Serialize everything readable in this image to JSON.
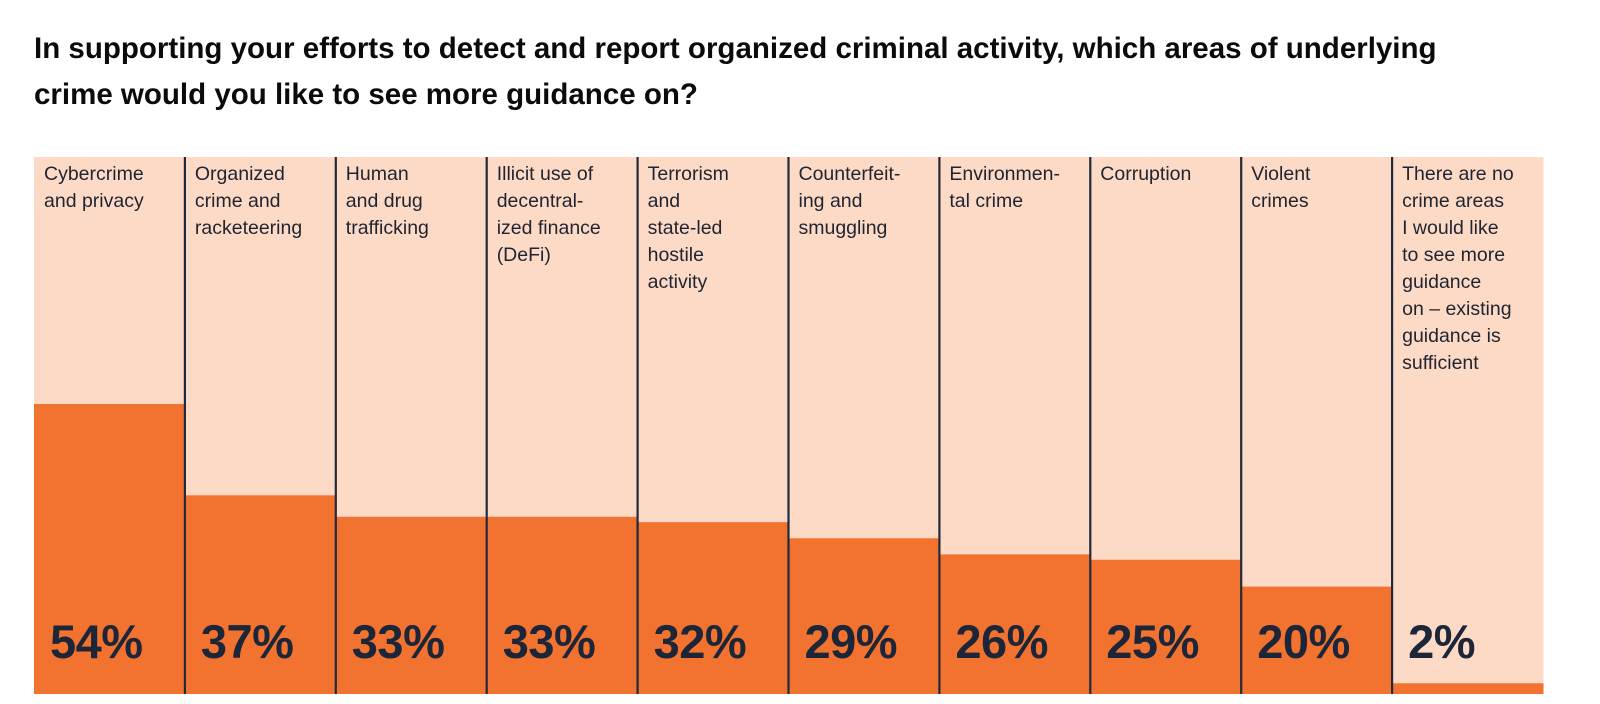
{
  "title": "In supporting your efforts to detect and report organized criminal activity, which areas of underlying crime would you like to see more guidance on?",
  "colors": {
    "bar": "#F27230",
    "background_column": "#FDDAC6",
    "divider": "#1f2a3a",
    "value_text": "#1c2638",
    "category_text": "#1f2430"
  },
  "chart_data": {
    "type": "bar",
    "title": "In supporting your efforts to detect and report organized criminal activity, which areas of underlying crime would you like to see more guidance on?",
    "xlabel": "",
    "ylabel": "",
    "ylim": [
      0,
      100
    ],
    "unit": "%",
    "grid": false,
    "legend": "none",
    "categories": [
      "Cybercrime\nand privacy",
      "Organized\ncrime and\nracketeering",
      "Human\nand drug\ntrafficking",
      "Illicit use of\ndecentral-\nized finance\n(DeFi)",
      "Terrorism\nand\nstate-led\nhostile\nactivity",
      "Counterfeit-\ning and\nsmuggling",
      "Environmen-\ntal crime",
      "Corruption",
      "Violent\ncrimes",
      "There are no\ncrime areas\nI would like\nto see more\nguidance\non – existing\nguidance is\nsufficient"
    ],
    "values": [
      54,
      37,
      33,
      33,
      32,
      29,
      26,
      25,
      20,
      2
    ],
    "value_labels": [
      "54%",
      "37%",
      "33%",
      "33%",
      "32%",
      "29%",
      "26%",
      "25%",
      "20%",
      "2%"
    ]
  }
}
